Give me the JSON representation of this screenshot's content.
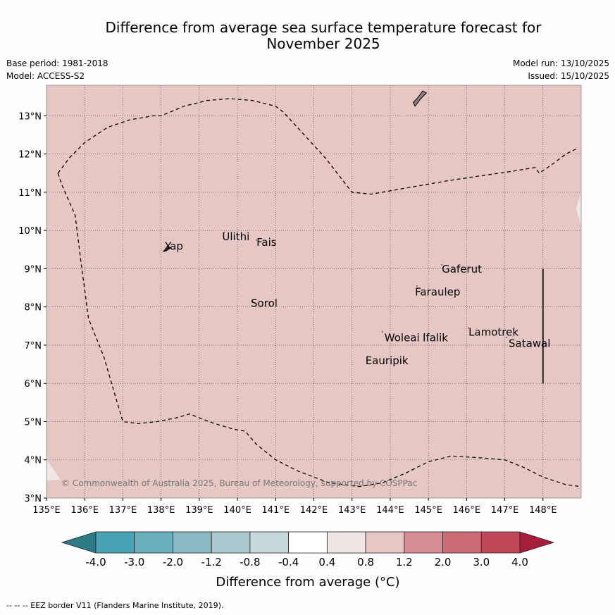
{
  "title_line1": "Difference from average sea surface temperature forecast for",
  "title_line2": "November 2025",
  "base_period": "Base period: 1981-2018",
  "model": "Model: ACCESS-S2",
  "model_run": "Model run: 13/10/2025",
  "issued": "Issued: 15/10/2025",
  "copyright": "© Commonwealth of Australia 2025, Bureau of Meteorology, supported by COSPPac",
  "footer": "--  --  -- EEZ border V11 (Flanders Marine Institute, 2019).",
  "colors": {
    "fill_anomaly": "#e6c7c4",
    "fill_near_zero": "#efe6e5",
    "grid": "#444444",
    "land": "#8a8080"
  },
  "chart_data": {
    "type": "map",
    "lon_range": [
      135,
      149
    ],
    "lat_range": [
      3,
      13.8
    ],
    "x_ticks": [
      "135°E",
      "136°E",
      "137°E",
      "138°E",
      "139°E",
      "140°E",
      "141°E",
      "142°E",
      "143°E",
      "144°E",
      "145°E",
      "146°E",
      "147°E",
      "148°E"
    ],
    "y_ticks": [
      "3°N",
      "4°N",
      "5°N",
      "6°N",
      "7°N",
      "8°N",
      "9°N",
      "10°N",
      "11°N",
      "12°N",
      "13°N"
    ],
    "places": [
      {
        "name": "Yap",
        "lon": 138.1,
        "lat": 9.5,
        "marker_lon": 138.15,
        "marker_lat": 9.55
      },
      {
        "name": "Ulithi",
        "lon": 139.6,
        "lat": 9.75,
        "marker_lon": 139.65,
        "marker_lat": 9.95
      },
      {
        "name": "Fais",
        "lon": 140.5,
        "lat": 9.6,
        "marker_lon": 140.5,
        "marker_lat": 9.75
      },
      {
        "name": "Sorol",
        "lon": 140.35,
        "lat": 8.0,
        "marker_lon": 140.4,
        "marker_lat": 8.15
      },
      {
        "name": "Gaferut",
        "lon": 145.35,
        "lat": 8.9,
        "marker_lon": 145.35,
        "marker_lat": 9.1
      },
      {
        "name": "Faraulep",
        "lon": 144.65,
        "lat": 8.3,
        "marker_lon": 144.7,
        "marker_lat": 8.55
      },
      {
        "name": "Woleai",
        "lon": 143.85,
        "lat": 7.1,
        "marker_lon": 143.8,
        "marker_lat": 7.35
      },
      {
        "name": "Ifalik",
        "lon": 144.85,
        "lat": 7.1,
        "marker_lon": 144.9,
        "marker_lat": 7.3
      },
      {
        "name": "Lamotrek",
        "lon": 146.05,
        "lat": 7.25,
        "marker_lon": 146.05,
        "marker_lat": 7.45
      },
      {
        "name": "Satawal",
        "lon": 147.1,
        "lat": 6.95,
        "marker_lon": 147.05,
        "marker_lat": 7.2
      },
      {
        "name": "Eauripik",
        "lon": 143.35,
        "lat": 6.5,
        "marker_lon": 143.4,
        "marker_lat": 6.7
      }
    ],
    "eez_border": {
      "north": [
        [
          135.3,
          11.5
        ],
        [
          135.6,
          11.9
        ],
        [
          136.0,
          12.3
        ],
        [
          136.6,
          12.7
        ],
        [
          137.2,
          12.9
        ],
        [
          137.8,
          13.0
        ],
        [
          138.0,
          13.0
        ],
        [
          138.6,
          13.25
        ],
        [
          139.2,
          13.4
        ],
        [
          139.8,
          13.45
        ],
        [
          140.4,
          13.4
        ],
        [
          141.0,
          13.25
        ],
        [
          141.2,
          13.1
        ],
        [
          142.3,
          11.9
        ],
        [
          143.0,
          11.0
        ],
        [
          143.5,
          10.95
        ],
        [
          145.5,
          11.3
        ],
        [
          146.5,
          11.45
        ],
        [
          147.2,
          11.55
        ],
        [
          147.8,
          11.65
        ],
        [
          147.9,
          11.5
        ],
        [
          148.2,
          11.7
        ],
        [
          148.6,
          12.0
        ],
        [
          148.9,
          12.15
        ]
      ],
      "west": [
        [
          135.3,
          11.5
        ],
        [
          135.4,
          11.2
        ],
        [
          135.75,
          10.4
        ],
        [
          135.9,
          9.2
        ],
        [
          136.1,
          7.7
        ],
        [
          136.5,
          6.7
        ],
        [
          137.0,
          5.0
        ],
        [
          137.4,
          4.95
        ],
        [
          137.9,
          5.0
        ],
        [
          138.4,
          5.1
        ],
        [
          138.75,
          5.2
        ],
        [
          139.0,
          5.1
        ],
        [
          139.4,
          4.95
        ],
        [
          139.9,
          4.8
        ],
        [
          140.2,
          4.75
        ],
        [
          140.5,
          4.4
        ],
        [
          141.0,
          4.0
        ],
        [
          141.6,
          3.7
        ],
        [
          142.4,
          3.4
        ],
        [
          143.2,
          3.3
        ],
        [
          143.8,
          3.4
        ],
        [
          144.4,
          3.65
        ],
        [
          145.0,
          3.95
        ],
        [
          145.6,
          4.1
        ],
        [
          146.4,
          4.05
        ],
        [
          147.0,
          4.0
        ],
        [
          147.5,
          3.8
        ],
        [
          148.0,
          3.55
        ],
        [
          148.6,
          3.35
        ],
        [
          149.0,
          3.3
        ]
      ]
    },
    "contour_line": {
      "lon": 148.0,
      "lat_from": 6.0,
      "lat_to": 9.0
    },
    "land_guam": [
      [
        144.65,
        13.25
      ],
      [
        144.8,
        13.45
      ],
      [
        144.95,
        13.6
      ],
      [
        144.85,
        13.65
      ],
      [
        144.7,
        13.45
      ],
      [
        144.6,
        13.35
      ]
    ],
    "colorbar": {
      "label": "Difference from average (°C)",
      "ticks": [
        "-4.0",
        "-3.0",
        "-2.0",
        "-1.2",
        "-0.8",
        "-0.4",
        "0.4",
        "0.8",
        "1.2",
        "2.0",
        "3.0",
        "4.0"
      ],
      "colors": [
        "#2d7b86",
        "#47a2b3",
        "#6aafbd",
        "#8ab8c3",
        "#a9c8cf",
        "#c7d8db",
        "#ffffff",
        "#efe6e5",
        "#e6c7c4",
        "#d78d94",
        "#cd6b75",
        "#c04756",
        "#a61e3c"
      ]
    }
  }
}
